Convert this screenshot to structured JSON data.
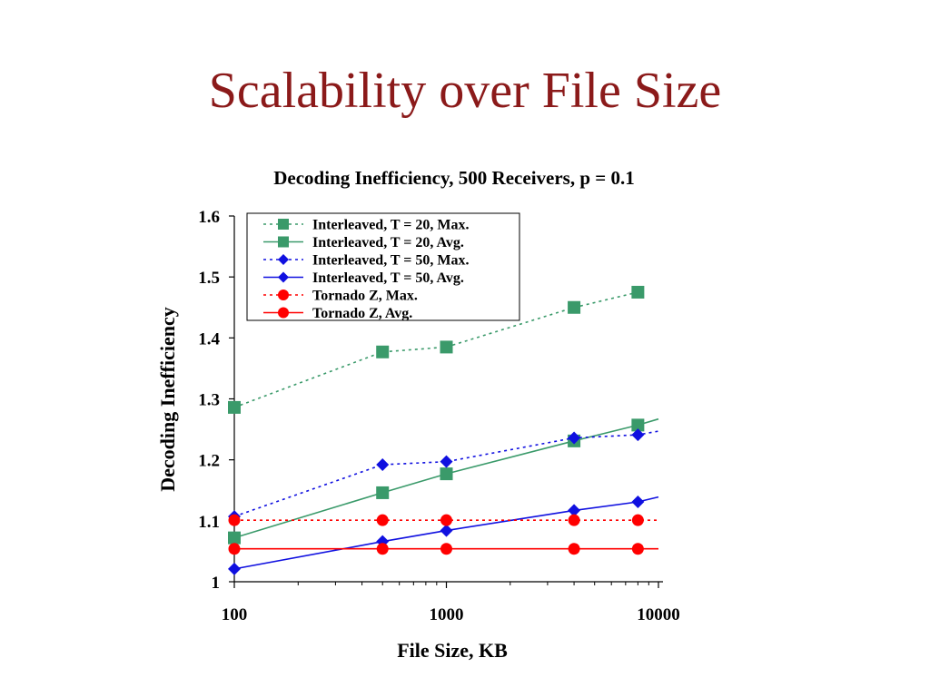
{
  "slide": {
    "title": "Scalability over File Size"
  },
  "chart_data": {
    "type": "line",
    "title": "Decoding Inefficiency, 500 Receivers, p = 0.1",
    "xlabel": "File Size, KB",
    "ylabel": "Decoding Inefficiency",
    "xscale": "log",
    "xlim": [
      100,
      10000
    ],
    "ylim": [
      1,
      1.6
    ],
    "xticks": [
      100,
      1000,
      10000
    ],
    "xtick_labels": [
      "100",
      "1000",
      "10000"
    ],
    "yticks": [
      1,
      1.1,
      1.2,
      1.3,
      1.4,
      1.5,
      1.6
    ],
    "ytick_labels": [
      "1",
      "1.1",
      "1.2",
      "1.3",
      "1.4",
      "1.5",
      "1.6"
    ],
    "grid": false,
    "legend_position": "top-left",
    "series": [
      {
        "name": "Interleaved, T = 20, Max.",
        "color": "#3a9a6a",
        "line_style": "dotted",
        "marker": "square",
        "points": [
          [
            100,
            1.286
          ],
          [
            500,
            1.377
          ],
          [
            1000,
            1.385
          ],
          [
            4000,
            1.45
          ],
          [
            8000,
            1.475
          ]
        ],
        "trend_end": null
      },
      {
        "name": "Interleaved, T = 20, Avg.",
        "color": "#3a9a6a",
        "line_style": "solid",
        "marker": "square",
        "points": [
          [
            100,
            1.072
          ],
          [
            500,
            1.146
          ],
          [
            1000,
            1.177
          ],
          [
            4000,
            1.231
          ],
          [
            8000,
            1.257
          ]
        ],
        "trend_end": [
          10000,
          1.267
        ]
      },
      {
        "name": "Interleaved, T = 50, Max.",
        "color": "#1010e0",
        "line_style": "dotted",
        "marker": "diamond",
        "points": [
          [
            100,
            1.107
          ],
          [
            500,
            1.192
          ],
          [
            1000,
            1.197
          ],
          [
            4000,
            1.236
          ],
          [
            8000,
            1.241
          ]
        ],
        "trend_end": [
          10000,
          1.247
        ]
      },
      {
        "name": "Interleaved, T = 50, Avg.",
        "color": "#1010e0",
        "line_style": "solid",
        "marker": "diamond",
        "points": [
          [
            100,
            1.021
          ],
          [
            500,
            1.066
          ],
          [
            1000,
            1.084
          ],
          [
            4000,
            1.117
          ],
          [
            8000,
            1.131
          ]
        ],
        "trend_end": [
          10000,
          1.139
        ]
      },
      {
        "name": "Tornado Z, Max.",
        "color": "#ff0000",
        "line_style": "dotted",
        "marker": "circle",
        "points": [
          [
            100,
            1.101
          ],
          [
            500,
            1.101
          ],
          [
            1000,
            1.101
          ],
          [
            4000,
            1.101
          ],
          [
            8000,
            1.101
          ]
        ],
        "trend_end": [
          10000,
          1.101
        ]
      },
      {
        "name": "Tornado Z, Avg.",
        "color": "#ff0000",
        "line_style": "solid",
        "marker": "circle",
        "points": [
          [
            100,
            1.054
          ],
          [
            500,
            1.054
          ],
          [
            1000,
            1.054
          ],
          [
            4000,
            1.054
          ],
          [
            8000,
            1.054
          ]
        ],
        "trend_end": [
          10000,
          1.054
        ]
      }
    ]
  }
}
